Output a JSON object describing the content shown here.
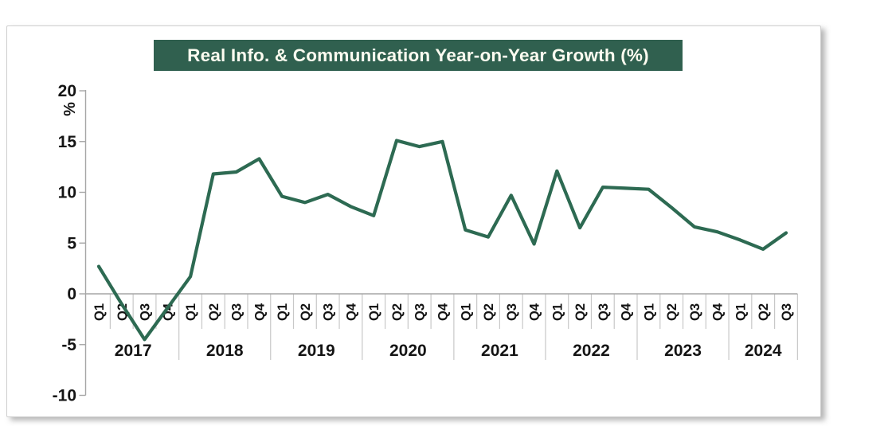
{
  "title": "Real Info. & Communication Year-on-Year Growth (%)",
  "colors": {
    "title_bg": "#30604f",
    "title_text": "#fdfcf0",
    "line": "#2d6a52",
    "axis": "#a6a6a6",
    "cell_border": "#c8c8c8",
    "label": "#141414"
  },
  "chart_data": {
    "type": "line",
    "title": "Real Info. & Communication Year-on-Year Growth (%)",
    "xlabel": "",
    "ylabel": "%",
    "ylim": [
      -10,
      20
    ],
    "yticks": [
      20,
      15,
      10,
      5,
      0,
      -5,
      -10
    ],
    "grid": false,
    "legend_position": "none",
    "line_color": "#2d6a52",
    "years": [
      {
        "year": "2017",
        "quarters": [
          "Q1",
          "Q2",
          "Q3",
          "Q4"
        ],
        "values": [
          2.7,
          -1.0,
          -4.5,
          -1.4
        ]
      },
      {
        "year": "2018",
        "quarters": [
          "Q1",
          "Q2",
          "Q3",
          "Q4"
        ],
        "values": [
          1.7,
          11.8,
          12.0,
          13.3
        ]
      },
      {
        "year": "2019",
        "quarters": [
          "Q1",
          "Q2",
          "Q3",
          "Q4"
        ],
        "values": [
          9.6,
          9.0,
          9.8,
          8.6
        ]
      },
      {
        "year": "2020",
        "quarters": [
          "Q1",
          "Q2",
          "Q3",
          "Q4"
        ],
        "values": [
          7.7,
          15.1,
          14.5,
          15.0
        ]
      },
      {
        "year": "2021",
        "quarters": [
          "Q1",
          "Q2",
          "Q3",
          "Q4"
        ],
        "values": [
          6.3,
          5.6,
          9.7,
          4.9
        ]
      },
      {
        "year": "2022",
        "quarters": [
          "Q1",
          "Q2",
          "Q3",
          "Q4"
        ],
        "values": [
          12.1,
          6.5,
          10.5,
          10.4
        ]
      },
      {
        "year": "2023",
        "quarters": [
          "Q1",
          "Q2",
          "Q3",
          "Q4"
        ],
        "values": [
          10.3,
          8.5,
          6.6,
          6.1
        ]
      },
      {
        "year": "2024",
        "quarters": [
          "Q1",
          "Q2",
          "Q3"
        ],
        "values": [
          5.3,
          4.4,
          6.0
        ]
      }
    ]
  }
}
